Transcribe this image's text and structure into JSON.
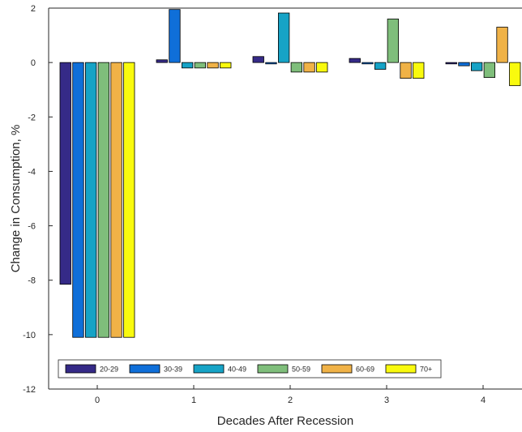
{
  "chart_data": {
    "type": "bar",
    "xlabel": "Decades After Recession",
    "ylabel": "Change in Consumption, %",
    "categories": [
      "0",
      "1",
      "2",
      "3",
      "4"
    ],
    "ylim": [
      -12,
      2
    ],
    "yticks": [
      2,
      0,
      -2,
      -4,
      -6,
      -8,
      -10,
      -12
    ],
    "grid": false,
    "legend_position": "bottom",
    "series": [
      {
        "name": "20-29",
        "color": "#352a87",
        "values": [
          -8.15,
          0.1,
          0.22,
          0.15,
          -0.05
        ]
      },
      {
        "name": "30-39",
        "color": "#0f6fd9",
        "values": [
          -10.1,
          1.95,
          -0.05,
          -0.05,
          -0.12
        ]
      },
      {
        "name": "40-49",
        "color": "#16a3c6",
        "values": [
          -10.1,
          -0.2,
          1.82,
          -0.25,
          -0.3
        ]
      },
      {
        "name": "50-59",
        "color": "#7fbe7b",
        "values": [
          -10.1,
          -0.2,
          -0.35,
          1.6,
          -0.55
        ]
      },
      {
        "name": "60-69",
        "color": "#f0b247",
        "values": [
          -10.1,
          -0.2,
          -0.35,
          -0.58,
          1.3
        ]
      },
      {
        "name": "70+",
        "color": "#f9fa0e",
        "values": [
          -10.1,
          -0.2,
          -0.35,
          -0.58,
          -0.85
        ]
      }
    ]
  }
}
